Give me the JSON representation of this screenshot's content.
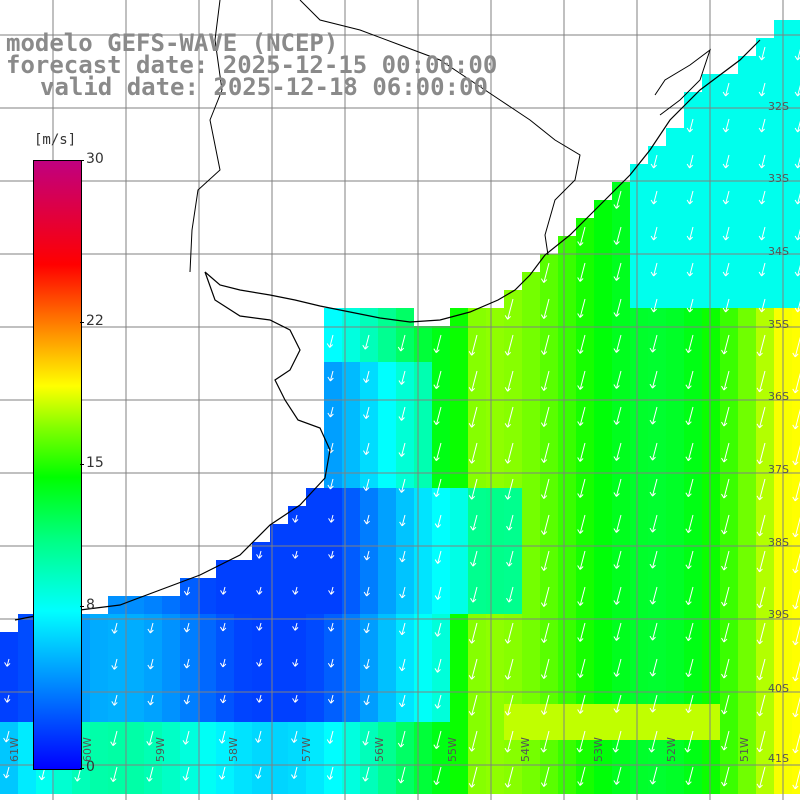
{
  "title": {
    "line1": "modelo GEFS-WAVE (NCEP)",
    "line2": "forecast date: 2025-12-15 00:00:00",
    "line3": "valid date: 2025-12-18 06:00:00"
  },
  "colorbar": {
    "unit": "[m/s]",
    "min": 0,
    "max": 30,
    "ticks": [
      "30",
      "22",
      "15",
      "8",
      "0"
    ],
    "tick_values": [
      30,
      22,
      15,
      8,
      0
    ]
  },
  "lat_labels": [
    "32S",
    "33S",
    "34S",
    "35S",
    "36S",
    "37S",
    "38S",
    "39S",
    "40S",
    "41S"
  ],
  "lon_labels": [
    "61W",
    "60W",
    "59W",
    "58W",
    "57W",
    "56W",
    "55W",
    "54W",
    "53W",
    "52W",
    "51W"
  ],
  "colors": {
    "land": "#ffffff",
    "grid": "#808080",
    "coast": "#000000",
    "arrows": "#ffffff"
  },
  "chart_data": {
    "type": "heatmap",
    "x": [
      -61,
      -60,
      -59,
      -58,
      -57,
      -56,
      -55,
      -54,
      -53,
      -52,
      -51
    ],
    "y": [
      -31.5,
      -32,
      -33,
      -34,
      -35,
      -36,
      -37,
      -38,
      -39,
      -40,
      -41
    ],
    "value_unit": "m/s",
    "zlim": [
      0,
      30
    ]
  }
}
